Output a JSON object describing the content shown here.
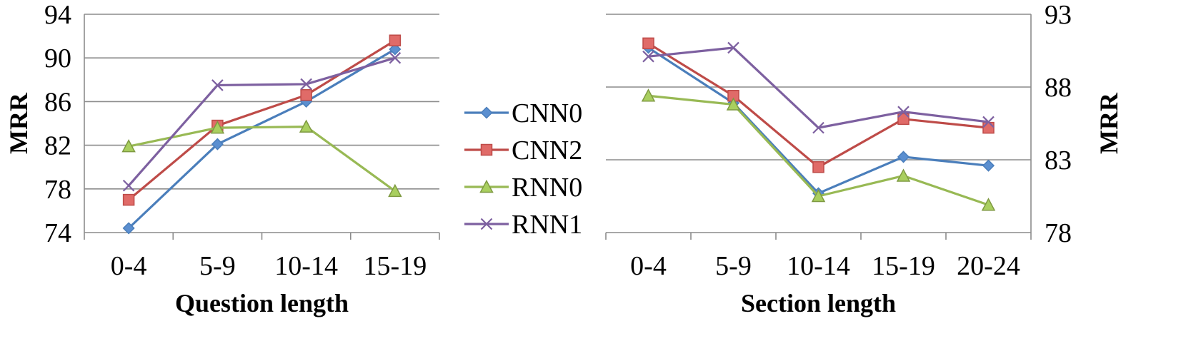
{
  "chart_data": [
    {
      "type": "line",
      "xlabel": "Question length",
      "ylabel": "MRR",
      "categories": [
        "0-4",
        "5-9",
        "10-14",
        "15-19"
      ],
      "y_ticks": [
        74,
        78,
        82,
        86,
        90,
        94
      ],
      "ylim": [
        74,
        94
      ],
      "y_axis_side": "left",
      "grid": true,
      "series": [
        {
          "name": "CNN0",
          "values": [
            74.4,
            82.1,
            86.0,
            90.8
          ]
        },
        {
          "name": "CNN2",
          "values": [
            77.0,
            83.8,
            86.6,
            91.6
          ]
        },
        {
          "name": "RNN0",
          "values": [
            81.9,
            83.6,
            83.7,
            77.8
          ]
        },
        {
          "name": "RNN1",
          "values": [
            78.3,
            87.5,
            87.6,
            90.0
          ]
        }
      ]
    },
    {
      "type": "line",
      "xlabel": "Section length",
      "ylabel": "MRR",
      "categories": [
        "0-4",
        "5-9",
        "10-14",
        "15-19",
        "20-24"
      ],
      "y_ticks": [
        78,
        83,
        88,
        93
      ],
      "ylim": [
        78,
        93
      ],
      "y_axis_side": "right",
      "grid": true,
      "series": [
        {
          "name": "CNN0",
          "values": [
            90.7,
            86.9,
            80.7,
            83.2,
            82.6
          ]
        },
        {
          "name": "CNN2",
          "values": [
            91.0,
            87.4,
            82.5,
            85.8,
            85.2
          ]
        },
        {
          "name": "RNN0",
          "values": [
            87.4,
            86.8,
            80.5,
            81.9,
            79.9
          ]
        },
        {
          "name": "RNN1",
          "values": [
            90.1,
            90.7,
            85.2,
            86.3,
            85.6
          ]
        }
      ]
    }
  ],
  "legend": {
    "placement": "between-charts",
    "items": [
      "CNN0",
      "CNN2",
      "RNN0",
      "RNN1"
    ]
  },
  "series_styles": {
    "CNN0": {
      "color": "#4a7ebb",
      "marker": "diamond-icon",
      "fill": "#5b8fd0"
    },
    "CNN2": {
      "color": "#be4b48",
      "marker": "square-icon",
      "fill": "#e06b68"
    },
    "RNN0": {
      "color": "#98b954",
      "marker": "triangle-icon",
      "fill": "#a9cf5f"
    },
    "RNN1": {
      "color": "#7d60a0",
      "marker": "x-icon",
      "fill": "#7d60a0"
    }
  }
}
